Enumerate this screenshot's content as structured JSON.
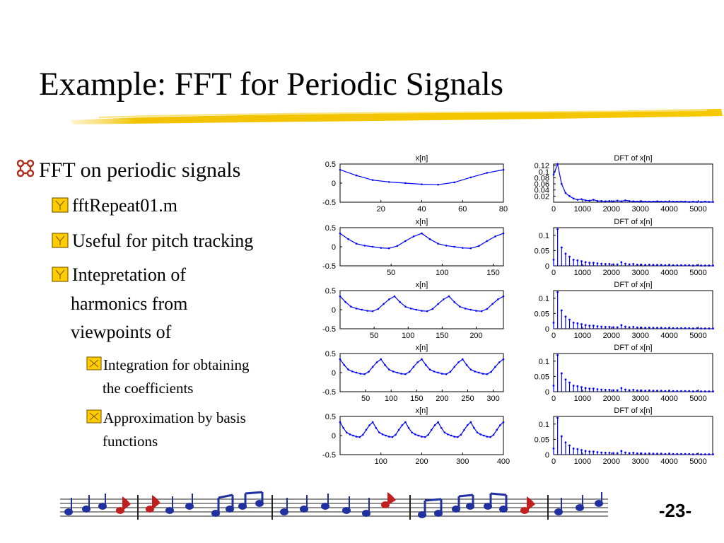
{
  "title": "Example: FFT for Periodic Signals",
  "bullets": {
    "level1": "FFT on periodic signals",
    "level2": [
      "fftRepeat01.m",
      "Useful for pitch tracking",
      [
        "Intepretation of",
        "harmonics from",
        "viewpoints of"
      ]
    ],
    "level3": [
      [
        "Integration for obtaining",
        "the coefficients"
      ],
      [
        "Approximation by basis",
        "functions"
      ]
    ]
  },
  "page_number": "-23-",
  "chart_data": [
    {
      "type": "line",
      "title": "x[n]",
      "color": "#0000ff",
      "xlim": [
        0,
        80
      ],
      "xticks": [
        20,
        40,
        60,
        80
      ],
      "ylim": [
        -0.5,
        0.5
      ],
      "yticks": [
        -0.5,
        0,
        0.5
      ],
      "x": [
        0,
        8,
        16,
        24,
        32,
        40,
        48,
        56,
        64,
        72,
        80
      ],
      "values": [
        0.35,
        0.2,
        0.08,
        0.03,
        0,
        -0.03,
        -0.04,
        0.02,
        0.15,
        0.27,
        0.35
      ]
    },
    {
      "type": "line",
      "title": "DFT of x[n]",
      "color": "#0000ff",
      "xlim": [
        0,
        5500
      ],
      "xticks": [
        0,
        1000,
        2000,
        3000,
        4000,
        5000
      ],
      "ylim": [
        0,
        0.125
      ],
      "yticks": [
        0.02,
        0.04,
        0.06,
        0.08,
        0.1,
        0.12
      ],
      "x": [
        0,
        138,
        276,
        414,
        551,
        689,
        827,
        965,
        1103,
        1241,
        1378,
        1516,
        1654,
        1792,
        1930,
        2067,
        2205,
        2343,
        2481,
        2619,
        2756,
        2894,
        3032,
        3170,
        3308,
        3445,
        3583,
        3721,
        3859,
        3997,
        4134,
        4272,
        4410,
        4548,
        4686,
        4823,
        4961,
        5099,
        5237,
        5375,
        5512
      ],
      "values": [
        0.09,
        0.125,
        0.06,
        0.03,
        0.02,
        0.012,
        0.008,
        0.01,
        0.006,
        0.005,
        0.008,
        0.004,
        0.004,
        0.003,
        0.004,
        0.003,
        0.005,
        0.003,
        0.006,
        0.004,
        0.003,
        0.002,
        0.003,
        0.002,
        0.002,
        0.002,
        0.003,
        0.002,
        0.002,
        0.002,
        0.002,
        0.002,
        0.002,
        0.002,
        0.001,
        0.002,
        0.001,
        0.001,
        0.002,
        0.001,
        0.001
      ]
    },
    {
      "type": "line",
      "title": "x[n]",
      "color": "#0000ff",
      "xlim": [
        0,
        160
      ],
      "xticks": [
        50,
        100,
        150
      ],
      "ylim": [
        -0.5,
        0.5
      ],
      "yticks": [
        -0.5,
        0,
        0.5
      ],
      "x": [
        0,
        8,
        16,
        24,
        32,
        40,
        48,
        56,
        64,
        72,
        80,
        88,
        96,
        104,
        112,
        120,
        128,
        136,
        144,
        152,
        160
      ],
      "values": [
        0.35,
        0.2,
        0.08,
        0.03,
        0,
        -0.03,
        -0.04,
        0.02,
        0.15,
        0.27,
        0.35,
        0.2,
        0.08,
        0.03,
        0,
        -0.03,
        -0.04,
        0.02,
        0.15,
        0.27,
        0.35
      ]
    },
    {
      "type": "stem",
      "title": "DFT of x[n]",
      "color": "#0000ff",
      "xlim": [
        0,
        5500
      ],
      "xticks": [
        0,
        1000,
        2000,
        3000,
        4000,
        5000
      ],
      "ylim": [
        0,
        0.125
      ],
      "yticks": [
        0,
        0.05,
        0.1
      ],
      "x": [
        0,
        138,
        276,
        414,
        551,
        689,
        827,
        965,
        1103,
        1241,
        1378,
        1516,
        1654,
        1792,
        1930,
        2067,
        2205,
        2343,
        2481,
        2619,
        2756,
        2894,
        3032,
        3170,
        3308,
        3445,
        3583,
        3721,
        3859,
        3997,
        4134,
        4272,
        4410,
        4548,
        4686,
        4823,
        4961,
        5099,
        5237,
        5375,
        5512
      ],
      "values": [
        0.02,
        0.12,
        0.06,
        0.04,
        0.03,
        0.02,
        0.018,
        0.015,
        0.012,
        0.01,
        0.01,
        0.008,
        0.007,
        0.006,
        0.006,
        0.005,
        0.005,
        0.012,
        0.007,
        0.005,
        0.006,
        0.004,
        0.004,
        0.003,
        0.004,
        0.003,
        0.003,
        0.003,
        0.002,
        0.003,
        0.002,
        0.002,
        0.002,
        0.002,
        0.002,
        0.001,
        0.002,
        0.001,
        0.001,
        0.001,
        0.001
      ]
    },
    {
      "type": "line",
      "title": "x[n]",
      "color": "#0000ff",
      "xlim": [
        0,
        240
      ],
      "xticks": [
        50,
        100,
        150,
        200
      ],
      "ylim": [
        -0.5,
        0.5
      ],
      "yticks": [
        -0.5,
        0,
        0.5
      ],
      "x": [
        0,
        8,
        16,
        24,
        32,
        40,
        48,
        56,
        64,
        72,
        80,
        88,
        96,
        104,
        112,
        120,
        128,
        136,
        144,
        152,
        160,
        168,
        176,
        184,
        192,
        200,
        208,
        216,
        224,
        232,
        240
      ],
      "values": [
        0.35,
        0.2,
        0.08,
        0.03,
        0,
        -0.03,
        -0.04,
        0.02,
        0.15,
        0.27,
        0.35,
        0.2,
        0.08,
        0.03,
        0,
        -0.03,
        -0.04,
        0.02,
        0.15,
        0.27,
        0.35,
        0.2,
        0.08,
        0.03,
        0,
        -0.03,
        -0.04,
        0.02,
        0.15,
        0.27,
        0.35
      ]
    },
    {
      "type": "stem",
      "title": "DFT of x[n]",
      "color": "#0000ff",
      "xlim": [
        0,
        5500
      ],
      "xticks": [
        0,
        1000,
        2000,
        3000,
        4000,
        5000
      ],
      "ylim": [
        0,
        0.125
      ],
      "yticks": [
        0,
        0.05,
        0.1
      ],
      "x": [
        0,
        138,
        276,
        414,
        551,
        689,
        827,
        965,
        1103,
        1241,
        1378,
        1516,
        1654,
        1792,
        1930,
        2067,
        2205,
        2343,
        2481,
        2619,
        2756,
        2894,
        3032,
        3170,
        3308,
        3445,
        3583,
        3721,
        3859,
        3997,
        4134,
        4272,
        4410,
        4548,
        4686,
        4823,
        4961,
        5099,
        5237,
        5375,
        5512
      ],
      "values": [
        0.02,
        0.12,
        0.06,
        0.04,
        0.03,
        0.02,
        0.018,
        0.015,
        0.012,
        0.01,
        0.01,
        0.008,
        0.007,
        0.006,
        0.006,
        0.005,
        0.005,
        0.012,
        0.007,
        0.005,
        0.006,
        0.004,
        0.004,
        0.003,
        0.004,
        0.003,
        0.003,
        0.003,
        0.002,
        0.003,
        0.002,
        0.002,
        0.002,
        0.002,
        0.002,
        0.001,
        0.002,
        0.001,
        0.001,
        0.001,
        0.001
      ]
    },
    {
      "type": "line",
      "title": "x[n]",
      "color": "#0000ff",
      "xlim": [
        0,
        320
      ],
      "xticks": [
        50,
        100,
        150,
        200,
        250,
        300
      ],
      "ylim": [
        -0.5,
        0.5
      ],
      "yticks": [
        -0.5,
        0,
        0.5
      ],
      "x": [
        0,
        8,
        16,
        24,
        32,
        40,
        48,
        56,
        64,
        72,
        80,
        88,
        96,
        104,
        112,
        120,
        128,
        136,
        144,
        152,
        160,
        168,
        176,
        184,
        192,
        200,
        208,
        216,
        224,
        232,
        240,
        248,
        256,
        264,
        272,
        280,
        288,
        296,
        304,
        312,
        320
      ],
      "values": [
        0.35,
        0.2,
        0.08,
        0.03,
        0,
        -0.03,
        -0.04,
        0.02,
        0.15,
        0.27,
        0.35,
        0.2,
        0.08,
        0.03,
        0,
        -0.03,
        -0.04,
        0.02,
        0.15,
        0.27,
        0.35,
        0.2,
        0.08,
        0.03,
        0,
        -0.03,
        -0.04,
        0.02,
        0.15,
        0.27,
        0.35,
        0.2,
        0.08,
        0.03,
        0,
        -0.03,
        -0.04,
        0.02,
        0.15,
        0.27,
        0.35
      ]
    },
    {
      "type": "stem",
      "title": "DFT of x[n]",
      "color": "#0000ff",
      "xlim": [
        0,
        5500
      ],
      "xticks": [
        0,
        1000,
        2000,
        3000,
        4000,
        5000
      ],
      "ylim": [
        0,
        0.125
      ],
      "yticks": [
        0,
        0.05,
        0.1
      ],
      "x": [
        0,
        138,
        276,
        414,
        551,
        689,
        827,
        965,
        1103,
        1241,
        1378,
        1516,
        1654,
        1792,
        1930,
        2067,
        2205,
        2343,
        2481,
        2619,
        2756,
        2894,
        3032,
        3170,
        3308,
        3445,
        3583,
        3721,
        3859,
        3997,
        4134,
        4272,
        4410,
        4548,
        4686,
        4823,
        4961,
        5099,
        5237,
        5375,
        5512
      ],
      "values": [
        0.02,
        0.12,
        0.06,
        0.04,
        0.03,
        0.02,
        0.018,
        0.015,
        0.012,
        0.01,
        0.01,
        0.008,
        0.007,
        0.006,
        0.006,
        0.005,
        0.005,
        0.012,
        0.007,
        0.005,
        0.006,
        0.004,
        0.004,
        0.003,
        0.004,
        0.003,
        0.003,
        0.003,
        0.002,
        0.003,
        0.002,
        0.002,
        0.002,
        0.002,
        0.002,
        0.001,
        0.002,
        0.001,
        0.001,
        0.001,
        0.001
      ]
    },
    {
      "type": "line",
      "title": "x[n]",
      "color": "#0000ff",
      "xlim": [
        0,
        400
      ],
      "xticks": [
        100,
        200,
        300,
        400
      ],
      "ylim": [
        -0.5,
        0.5
      ],
      "yticks": [
        -0.5,
        0,
        0.5
      ],
      "x": [
        0,
        8,
        16,
        24,
        32,
        40,
        48,
        56,
        64,
        72,
        80,
        88,
        96,
        104,
        112,
        120,
        128,
        136,
        144,
        152,
        160,
        168,
        176,
        184,
        192,
        200,
        208,
        216,
        224,
        232,
        240,
        248,
        256,
        264,
        272,
        280,
        288,
        296,
        304,
        312,
        320,
        328,
        336,
        344,
        352,
        360,
        368,
        376,
        384,
        392,
        400
      ],
      "values": [
        0.35,
        0.2,
        0.08,
        0.03,
        0,
        -0.03,
        -0.04,
        0.02,
        0.15,
        0.27,
        0.35,
        0.2,
        0.08,
        0.03,
        0,
        -0.03,
        -0.04,
        0.02,
        0.15,
        0.27,
        0.35,
        0.2,
        0.08,
        0.03,
        0,
        -0.03,
        -0.04,
        0.02,
        0.15,
        0.27,
        0.35,
        0.2,
        0.08,
        0.03,
        0,
        -0.03,
        -0.04,
        0.02,
        0.15,
        0.27,
        0.35,
        0.2,
        0.08,
        0.03,
        0,
        -0.03,
        -0.04,
        0.02,
        0.15,
        0.27,
        0.35
      ]
    },
    {
      "type": "stem",
      "title": "DFT of x[n]",
      "color": "#0000ff",
      "xlim": [
        0,
        5500
      ],
      "xticks": [
        0,
        1000,
        2000,
        3000,
        4000,
        5000
      ],
      "ylim": [
        0,
        0.125
      ],
      "yticks": [
        0,
        0.05,
        0.1
      ],
      "x": [
        0,
        138,
        276,
        414,
        551,
        689,
        827,
        965,
        1103,
        1241,
        1378,
        1516,
        1654,
        1792,
        1930,
        2067,
        2205,
        2343,
        2481,
        2619,
        2756,
        2894,
        3032,
        3170,
        3308,
        3445,
        3583,
        3721,
        3859,
        3997,
        4134,
        4272,
        4410,
        4548,
        4686,
        4823,
        4961,
        5099,
        5237,
        5375,
        5512
      ],
      "values": [
        0.02,
        0.12,
        0.06,
        0.04,
        0.03,
        0.02,
        0.018,
        0.015,
        0.012,
        0.01,
        0.01,
        0.008,
        0.007,
        0.006,
        0.006,
        0.005,
        0.005,
        0.012,
        0.007,
        0.005,
        0.006,
        0.004,
        0.004,
        0.003,
        0.004,
        0.003,
        0.003,
        0.003,
        0.002,
        0.003,
        0.002,
        0.002,
        0.002,
        0.002,
        0.002,
        0.001,
        0.002,
        0.001,
        0.001,
        0.001,
        0.001
      ]
    }
  ]
}
